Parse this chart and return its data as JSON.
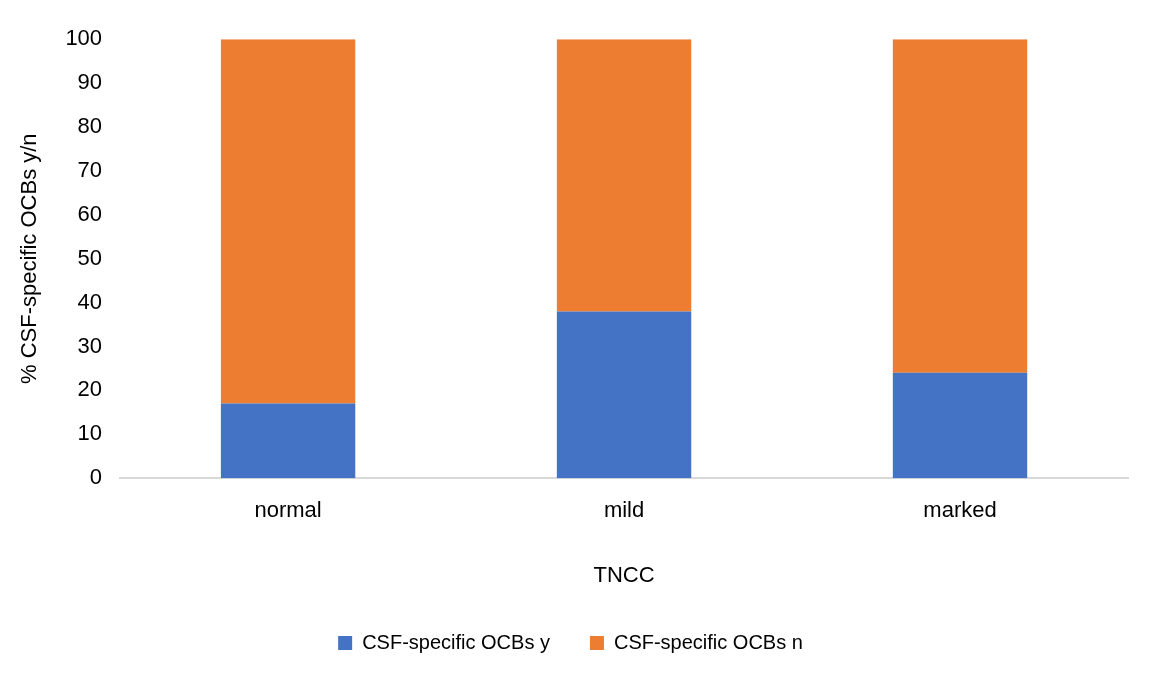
{
  "chart_data": {
    "type": "bar",
    "stacked": true,
    "xlabel": "TNCC",
    "ylabel": "% CSF-specific OCBs y/n",
    "categories": [
      "normal",
      "mild",
      "marked"
    ],
    "series": [
      {
        "name": "CSF-specific OCBs y",
        "color": "#4472c4",
        "values": [
          17,
          38,
          24
        ]
      },
      {
        "name": "CSF-specific OCBs n",
        "color": "#ed7d31",
        "values": [
          83,
          62,
          76
        ]
      }
    ],
    "ylim": [
      0,
      100
    ],
    "yticks": [
      0,
      10,
      20,
      30,
      40,
      50,
      60,
      70,
      80,
      90,
      100
    ],
    "grid": false,
    "legend": "bottom"
  }
}
